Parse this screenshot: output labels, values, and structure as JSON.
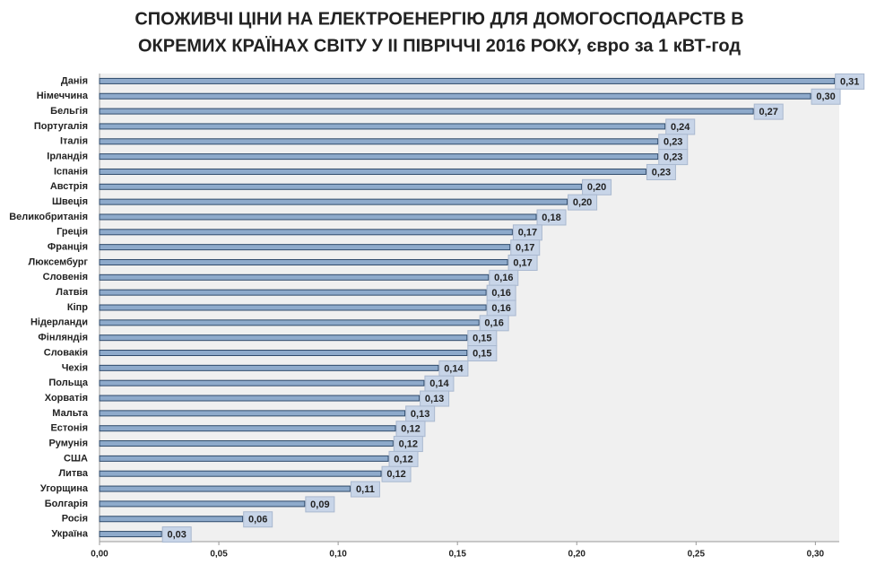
{
  "chart_data": {
    "type": "barh",
    "title": [
      "СПОЖИВЧІ ЦІНИ НА ЕЛЕКТРОЕНЕРГІЮ ДЛЯ ДОМОГОСПОДАРСТВ В",
      "ОКРЕМИХ КРАЇНАХ СВІТУ У ІІ ПІВРІЧЧІ 2016 РОКУ, євро за 1 кВТ-год"
    ],
    "categories": [
      "Данія",
      "Німеччина",
      "Бельгія",
      "Португалія",
      "Італія",
      "Ірландія",
      "Іспанія",
      "Австрія",
      "Швеція",
      "Великобританія",
      "Греція",
      "Франція",
      "Люксембург",
      "Словенія",
      "Латвія",
      "Кіпр",
      "Нідерланди",
      "Фінляндія",
      "Словакія",
      "Чехія",
      "Польща",
      "Хорватія",
      "Мальта",
      "Естонія",
      "Румунія",
      "США",
      "Литва",
      "Угорщина",
      "Болгарія",
      "Росія",
      "Україна"
    ],
    "values": [
      0.308,
      0.298,
      0.274,
      0.237,
      0.234,
      0.234,
      0.229,
      0.202,
      0.196,
      0.183,
      0.173,
      0.172,
      0.171,
      0.163,
      0.162,
      0.162,
      0.159,
      0.154,
      0.154,
      0.142,
      0.136,
      0.134,
      0.128,
      0.124,
      0.123,
      0.121,
      0.118,
      0.105,
      0.086,
      0.06,
      0.026
    ],
    "value_labels": [
      "0,31",
      "0,30",
      "0,27",
      "0,24",
      "0,23",
      "0,23",
      "0,23",
      "0,20",
      "0,20",
      "0,18",
      "0,17",
      "0,17",
      "0,17",
      "0,16",
      "0,16",
      "0,16",
      "0,16",
      "0,15",
      "0,15",
      "0,14",
      "0,14",
      "0,13",
      "0,13",
      "0,12",
      "0,12",
      "0,12",
      "0,12",
      "0,11",
      "0,09",
      "0,06",
      "0,03"
    ],
    "color": "#8eaacb",
    "xlim": [
      0,
      0.31
    ],
    "xticks": [
      {
        "value": 0,
        "label": "0,00"
      },
      {
        "value": 0.05,
        "label": "0,05"
      },
      {
        "value": 0.1,
        "label": "0,10"
      },
      {
        "value": 0.15,
        "label": "0,15"
      },
      {
        "value": 0.2,
        "label": "0,20"
      },
      {
        "value": 0.25,
        "label": "0,25"
      },
      {
        "value": 0.3,
        "label": "0,30"
      }
    ],
    "grid": false
  }
}
